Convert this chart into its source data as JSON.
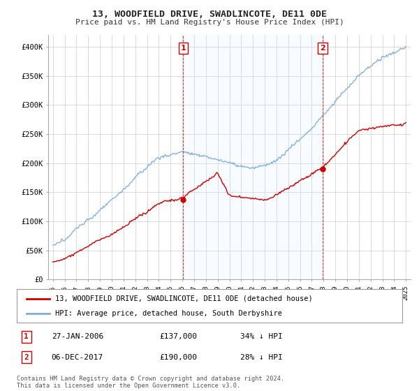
{
  "title": "13, WOODFIELD DRIVE, SWADLINCOTE, DE11 0DE",
  "subtitle": "Price paid vs. HM Land Registry's House Price Index (HPI)",
  "legend_entry1": "13, WOODFIELD DRIVE, SWADLINCOTE, DE11 0DE (detached house)",
  "legend_entry2": "HPI: Average price, detached house, South Derbyshire",
  "transaction1_label": "1",
  "transaction1_date": "27-JAN-2006",
  "transaction1_price": "£137,000",
  "transaction1_hpi": "34% ↓ HPI",
  "transaction1_x": 2006.07,
  "transaction1_y": 137000,
  "transaction2_label": "2",
  "transaction2_date": "06-DEC-2017",
  "transaction2_price": "£190,000",
  "transaction2_hpi": "28% ↓ HPI",
  "transaction2_x": 2017.92,
  "transaction2_y": 190000,
  "footer": "Contains HM Land Registry data © Crown copyright and database right 2024.\nThis data is licensed under the Open Government Licence v3.0.",
  "ylim": [
    0,
    420000
  ],
  "yticks": [
    0,
    50000,
    100000,
    150000,
    200000,
    250000,
    300000,
    350000,
    400000
  ],
  "ytick_labels": [
    "£0",
    "£50K",
    "£100K",
    "£150K",
    "£200K",
    "£250K",
    "£300K",
    "£350K",
    "£400K"
  ],
  "hpi_color": "#7aacdc",
  "price_color": "#cc0000",
  "vline_color": "#cc0000",
  "shade_color": "#ddeeff",
  "background_color": "#ffffff",
  "grid_color": "#cccccc",
  "xlim_left": 1994.6,
  "xlim_right": 2025.4
}
